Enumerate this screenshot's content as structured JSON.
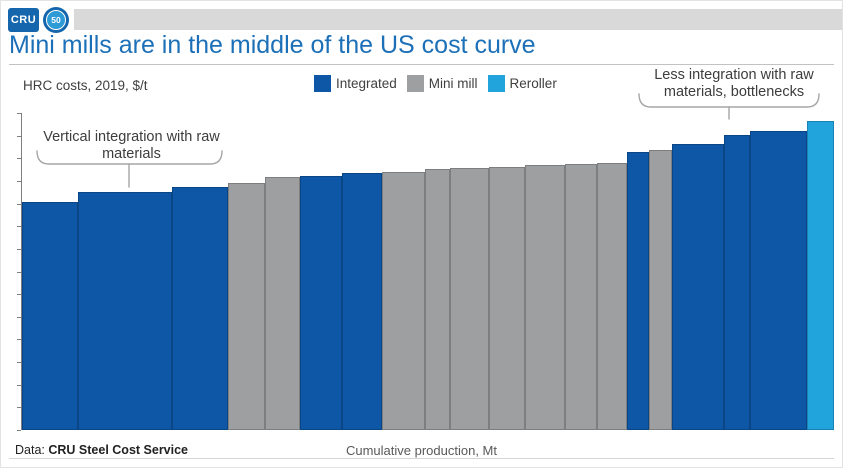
{
  "header": {
    "logo_text": "CRU",
    "badge_text": "50",
    "strip_color": "#d9d9d9",
    "brand_color": "#1566ac"
  },
  "title": "Mini mills are in the middle of the US cost curve",
  "subtitle": "HRC costs, 2019, $/t",
  "legend": [
    {
      "label": "Integrated",
      "key": "integrated"
    },
    {
      "label": "Mini mill",
      "key": "mini_mill"
    },
    {
      "label": "Reroller",
      "key": "reroller"
    }
  ],
  "annotations": {
    "left": "Vertical integration with raw materials",
    "right": "Less integration with raw materials, bottlenecks"
  },
  "footer": {
    "source_prefix": "Data:",
    "source": "CRU Steel Cost Service",
    "xaxis_label": "Cumulative production, Mt"
  },
  "chart_data": {
    "type": "bar",
    "subtype": "variable-width cost curve (bars sorted ascending by cost; bar width = production volume)",
    "title": "Mini mills are in the middle of the US cost curve",
    "ylabel": "HRC costs, 2019, $/t",
    "xlabel": "Cumulative production, Mt",
    "axis_numeric_labels": false,
    "note": "Neither axis carries numeric tick labels in the source; widths are relative production (Mt) units and heights are % of plot height estimated from pixels.",
    "legend_position": "top",
    "grid": false,
    "y_tick_count": 15,
    "colors": {
      "integrated": "#0d57a6",
      "mini_mill": "#9d9fa1",
      "reroller": "#21a3dc"
    },
    "border_colors": {
      "integrated": "#0a4685",
      "mini_mill": "#7c7e80",
      "reroller": "#1a83b4"
    },
    "bars": [
      {
        "segment": "integrated",
        "production_width": 56,
        "cost_height_pct": 71.9
      },
      {
        "segment": "integrated",
        "production_width": 94,
        "cost_height_pct": 75.1
      },
      {
        "segment": "integrated",
        "production_width": 56,
        "cost_height_pct": 76.7
      },
      {
        "segment": "mini_mill",
        "production_width": 37,
        "cost_height_pct": 77.9
      },
      {
        "segment": "mini_mill",
        "production_width": 35,
        "cost_height_pct": 79.8
      },
      {
        "segment": "integrated",
        "production_width": 42,
        "cost_height_pct": 80.1
      },
      {
        "segment": "integrated",
        "production_width": 40,
        "cost_height_pct": 81.1
      },
      {
        "segment": "mini_mill",
        "production_width": 43,
        "cost_height_pct": 81.4
      },
      {
        "segment": "mini_mill",
        "production_width": 25,
        "cost_height_pct": 82.3
      },
      {
        "segment": "mini_mill",
        "production_width": 39,
        "cost_height_pct": 82.6
      },
      {
        "segment": "mini_mill",
        "production_width": 36,
        "cost_height_pct": 83.0
      },
      {
        "segment": "mini_mill",
        "production_width": 40,
        "cost_height_pct": 83.6
      },
      {
        "segment": "mini_mill",
        "production_width": 32,
        "cost_height_pct": 83.9
      },
      {
        "segment": "mini_mill",
        "production_width": 30,
        "cost_height_pct": 84.2
      },
      {
        "segment": "integrated",
        "production_width": 22,
        "cost_height_pct": 87.7
      },
      {
        "segment": "mini_mill",
        "production_width": 23,
        "cost_height_pct": 88.3
      },
      {
        "segment": "integrated",
        "production_width": 52,
        "cost_height_pct": 90.2
      },
      {
        "segment": "integrated",
        "production_width": 26,
        "cost_height_pct": 93.1
      },
      {
        "segment": "integrated",
        "production_width": 57,
        "cost_height_pct": 94.3
      },
      {
        "segment": "reroller",
        "production_width": 27,
        "cost_height_pct": 97.5
      }
    ]
  }
}
